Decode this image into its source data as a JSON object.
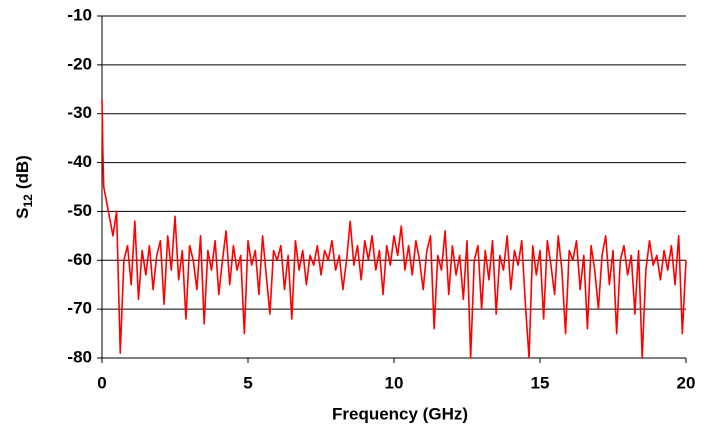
{
  "chart_data": {
    "type": "line",
    "xlabel": "Frequency (GHz)",
    "ylabel_main": "S",
    "ylabel_sub": "12",
    "ylabel_unit": "(dB)",
    "xlim": [
      0,
      20
    ],
    "xticks": [
      0,
      5,
      10,
      15,
      20
    ],
    "ylim": [
      -80,
      -10
    ],
    "yticks": [
      -10,
      -20,
      -30,
      -40,
      -50,
      -60,
      -70,
      -80
    ],
    "grid": true,
    "x": [
      0,
      0.03,
      0.06,
      0.125,
      0.25,
      0.375,
      0.5,
      0.625,
      0.75,
      0.875,
      1,
      1.125,
      1.25,
      1.375,
      1.5,
      1.625,
      1.75,
      1.875,
      2,
      2.125,
      2.25,
      2.375,
      2.5,
      2.625,
      2.75,
      2.875,
      3,
      3.125,
      3.25,
      3.375,
      3.5,
      3.625,
      3.75,
      3.875,
      4,
      4.125,
      4.25,
      4.375,
      4.5,
      4.625,
      4.75,
      4.875,
      5,
      5.125,
      5.25,
      5.375,
      5.5,
      5.625,
      5.75,
      5.875,
      6,
      6.125,
      6.25,
      6.375,
      6.5,
      6.625,
      6.75,
      6.875,
      7,
      7.125,
      7.25,
      7.375,
      7.5,
      7.625,
      7.75,
      7.875,
      8,
      8.125,
      8.25,
      8.375,
      8.5,
      8.625,
      8.75,
      8.875,
      9,
      9.125,
      9.25,
      9.375,
      9.5,
      9.625,
      9.75,
      9.875,
      10,
      10.125,
      10.25,
      10.375,
      10.5,
      10.625,
      10.75,
      10.875,
      11,
      11.125,
      11.25,
      11.375,
      11.5,
      11.625,
      11.75,
      11.875,
      12,
      12.125,
      12.25,
      12.375,
      12.5,
      12.625,
      12.75,
      12.875,
      13,
      13.125,
      13.25,
      13.375,
      13.5,
      13.625,
      13.75,
      13.875,
      14,
      14.125,
      14.25,
      14.375,
      14.5,
      14.625,
      14.75,
      14.875,
      15,
      15.125,
      15.25,
      15.375,
      15.5,
      15.625,
      15.75,
      15.875,
      16,
      16.125,
      16.25,
      16.375,
      16.5,
      16.625,
      16.75,
      16.875,
      17,
      17.125,
      17.25,
      17.375,
      17.5,
      17.625,
      17.75,
      17.875,
      18,
      18.125,
      18.25,
      18.375,
      18.5,
      18.625,
      18.75,
      18.875,
      19,
      19.125,
      19.25,
      19.375,
      19.5,
      19.625,
      19.75,
      19.875,
      20
    ],
    "series": [
      {
        "color": "#ff0000",
        "values": [
          -27,
          -38,
          -45,
          -47,
          -51,
          -55,
          -50,
          -79,
          -60,
          -57,
          -65,
          -52,
          -68,
          -58,
          -63,
          -57,
          -66,
          -59,
          -56,
          -69,
          -55,
          -62,
          -51,
          -64,
          -58,
          -72,
          -57,
          -60,
          -66,
          -55,
          -73,
          -58,
          -62,
          -56,
          -67,
          -60,
          -54,
          -65,
          -57,
          -62,
          -59,
          -75,
          -56,
          -61,
          -58,
          -67,
          -55,
          -63,
          -71,
          -58,
          -60,
          -57,
          -66,
          -59,
          -72,
          -56,
          -62,
          -58,
          -65,
          -59,
          -61,
          -57,
          -63,
          -58,
          -60,
          -56,
          -62,
          -59,
          -66,
          -60,
          -52,
          -61,
          -57,
          -64,
          -56,
          -60,
          -55,
          -62,
          -58,
          -67,
          -57,
          -61,
          -55,
          -59,
          -53,
          -62,
          -57,
          -63,
          -56,
          -60,
          -66,
          -58,
          -55,
          -74,
          -59,
          -62,
          -54,
          -67,
          -57,
          -63,
          -59,
          -68,
          -56,
          -80,
          -60,
          -57,
          -70,
          -58,
          -64,
          -56,
          -71,
          -59,
          -62,
          -55,
          -66,
          -58,
          -61,
          -56,
          -69,
          -80,
          -57,
          -63,
          -58,
          -72,
          -56,
          -61,
          -67,
          -55,
          -62,
          -75,
          -58,
          -60,
          -56,
          -66,
          -59,
          -74,
          -57,
          -62,
          -70,
          -59,
          -55,
          -65,
          -58,
          -75,
          -60,
          -57,
          -63,
          -59,
          -71,
          -58,
          -80,
          -62,
          -56,
          -61,
          -59,
          -64,
          -58,
          -62,
          -57,
          -65,
          -55,
          -75,
          -60
        ]
      }
    ]
  }
}
